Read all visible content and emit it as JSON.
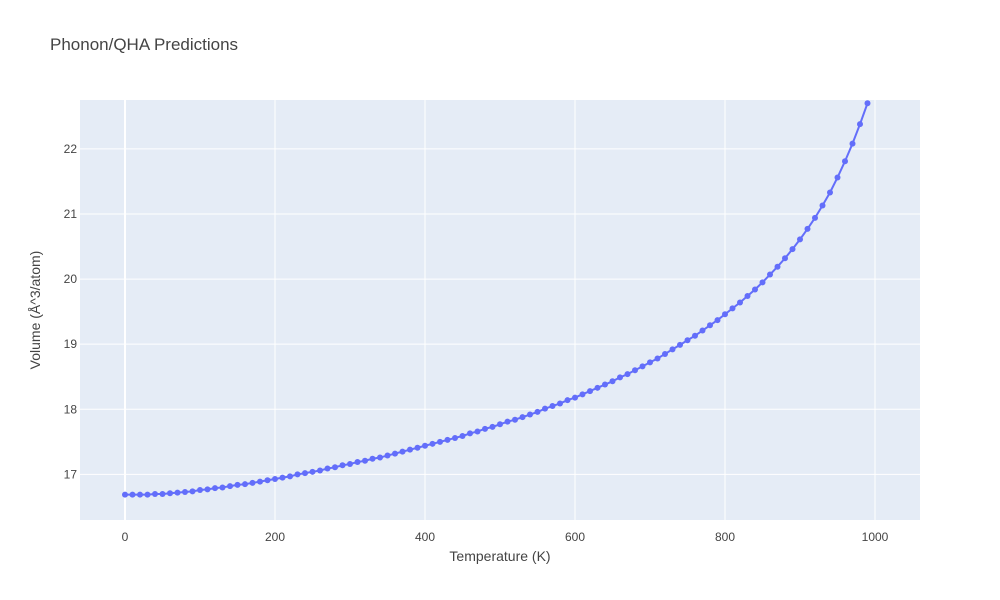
{
  "chart_data": {
    "type": "line",
    "title": "Phonon/QHA Predictions",
    "xlabel": "Temperature (K)",
    "ylabel": "Volume (Å^3/atom)",
    "xlim": [
      -60,
      1060
    ],
    "ylim": [
      16.3,
      22.75
    ],
    "x_ticks": [
      0,
      200,
      400,
      600,
      800,
      1000
    ],
    "y_ticks": [
      17,
      18,
      19,
      20,
      21,
      22
    ],
    "x_tick_labels": [
      "0",
      "200",
      "400",
      "600",
      "800",
      "1000"
    ],
    "y_tick_labels": [
      "17",
      "18",
      "19",
      "20",
      "21",
      "22"
    ],
    "grid": true,
    "legend": "none",
    "colors": {
      "series": "#636efa",
      "plot_bg": "#e5ecf6",
      "grid": "#ffffff"
    },
    "series": [
      {
        "mode": "lines+markers",
        "x": [
          0,
          10,
          20,
          30,
          40,
          50,
          60,
          70,
          80,
          90,
          100,
          110,
          120,
          130,
          140,
          150,
          160,
          170,
          180,
          190,
          200,
          210,
          220,
          230,
          240,
          250,
          260,
          270,
          280,
          290,
          300,
          310,
          320,
          330,
          340,
          350,
          360,
          370,
          380,
          390,
          400,
          410,
          420,
          430,
          440,
          450,
          460,
          470,
          480,
          490,
          500,
          510,
          520,
          530,
          540,
          550,
          560,
          570,
          580,
          590,
          600,
          610,
          620,
          630,
          640,
          650,
          660,
          670,
          680,
          690,
          700,
          710,
          720,
          730,
          740,
          750,
          760,
          770,
          780,
          790,
          800,
          810,
          820,
          830,
          840,
          850,
          860,
          870,
          880,
          890,
          900,
          910,
          920,
          930,
          940,
          950,
          960,
          970,
          980,
          990
        ],
        "y": [
          16.69,
          16.69,
          16.69,
          16.69,
          16.7,
          16.7,
          16.71,
          16.72,
          16.73,
          16.74,
          16.76,
          16.77,
          16.79,
          16.8,
          16.82,
          16.84,
          16.85,
          16.87,
          16.89,
          16.91,
          16.93,
          16.95,
          16.97,
          17.0,
          17.02,
          17.04,
          17.06,
          17.09,
          17.11,
          17.14,
          17.16,
          17.19,
          17.21,
          17.24,
          17.26,
          17.29,
          17.32,
          17.35,
          17.38,
          17.41,
          17.44,
          17.47,
          17.5,
          17.53,
          17.56,
          17.59,
          17.63,
          17.66,
          17.7,
          17.73,
          17.77,
          17.81,
          17.84,
          17.88,
          17.92,
          17.96,
          18.01,
          18.05,
          18.09,
          18.14,
          18.18,
          18.23,
          18.28,
          18.33,
          18.38,
          18.43,
          18.49,
          18.54,
          18.6,
          18.66,
          18.72,
          18.78,
          18.85,
          18.92,
          18.99,
          19.06,
          19.13,
          19.21,
          19.29,
          19.37,
          19.46,
          19.55,
          19.64,
          19.74,
          19.84,
          19.95,
          20.07,
          20.19,
          20.32,
          20.46,
          20.61,
          20.77,
          20.94,
          21.13,
          21.33,
          21.56,
          21.81,
          22.08,
          22.38,
          22.7
        ]
      }
    ]
  }
}
